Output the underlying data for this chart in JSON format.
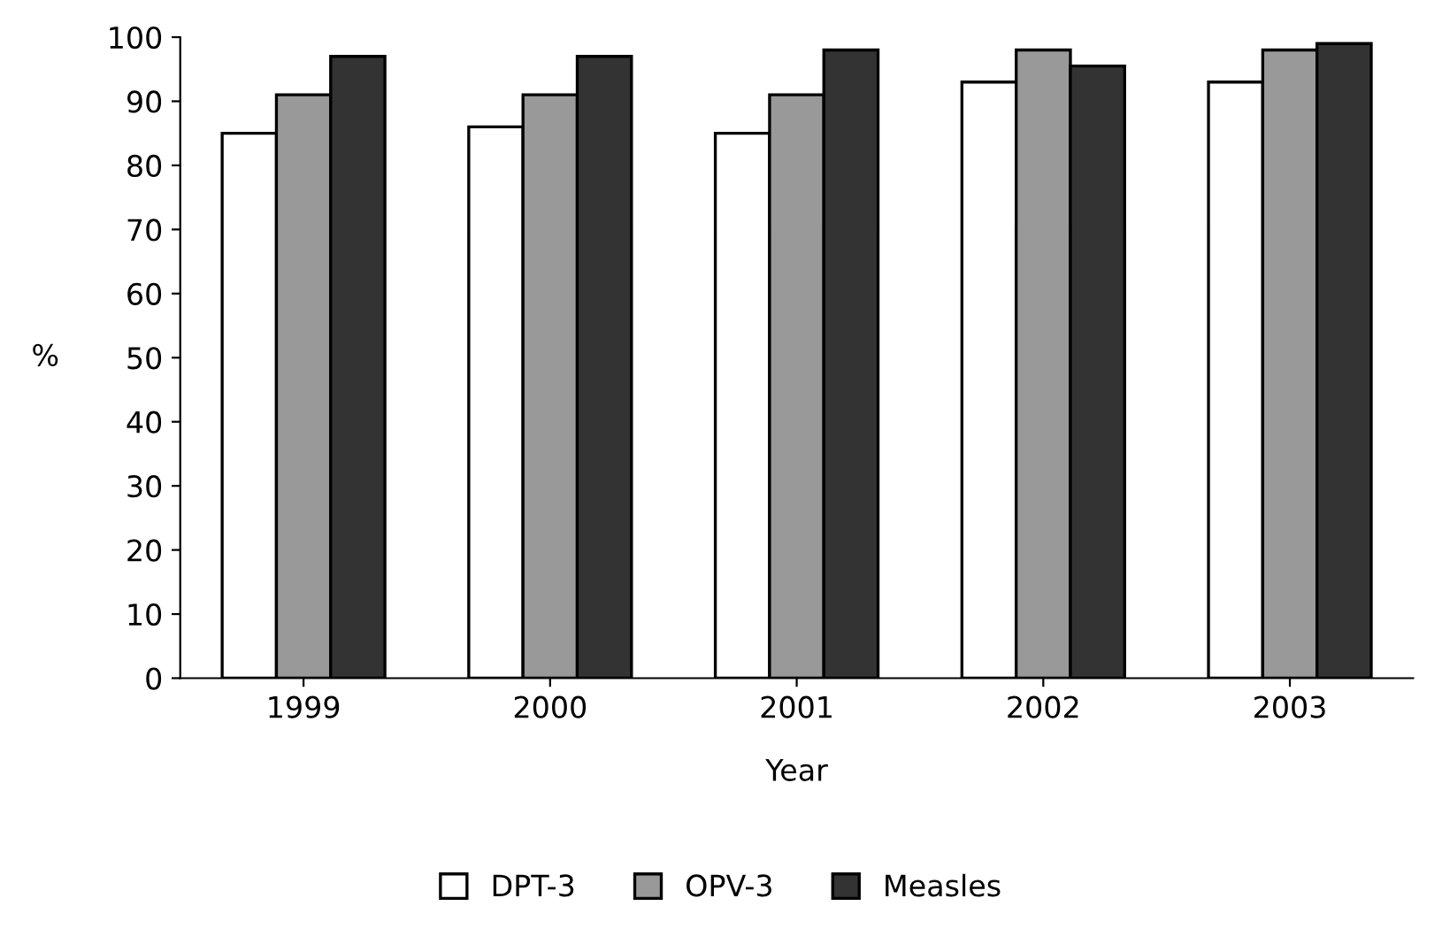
{
  "chart_data": {
    "type": "bar",
    "xlabel": "Year",
    "ylabel": "%",
    "categories": [
      "1999",
      "2000",
      "2001",
      "2002",
      "2003"
    ],
    "series": [
      {
        "name": "DPT-3",
        "color": "#ffffff",
        "values": [
          85,
          86,
          85,
          93,
          93
        ]
      },
      {
        "name": "OPV-3",
        "color": "#999999",
        "values": [
          91,
          91,
          91,
          98,
          98
        ]
      },
      {
        "name": "Measles",
        "color": "#333333",
        "values": [
          97,
          97,
          98,
          95.5,
          99
        ]
      }
    ],
    "ylim": [
      0,
      100
    ],
    "yticks": [
      0,
      10,
      20,
      30,
      40,
      50,
      60,
      70,
      80,
      90,
      100
    ],
    "grid": false,
    "legend": "bottom"
  }
}
